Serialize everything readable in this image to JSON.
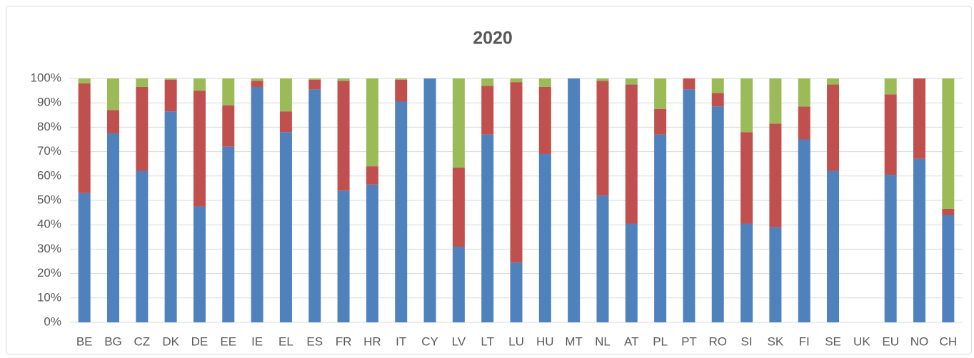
{
  "chart_data": {
    "type": "stacked_bar",
    "title": "2020",
    "categories": [
      "BE",
      "BG",
      "CZ",
      "DK",
      "DE",
      "EE",
      "IE",
      "EL",
      "ES",
      "FR",
      "HR",
      "IT",
      "CY",
      "LV",
      "LT",
      "LU",
      "HU",
      "MT",
      "NL",
      "AT",
      "PL",
      "PT",
      "RO",
      "SI",
      "SK",
      "FI",
      "SE",
      "UK",
      "EU",
      "NO",
      "CH"
    ],
    "series": [
      {
        "color": "#4f81bd",
        "values": [
          53,
          77.5,
          62,
          86.5,
          47.5,
          72,
          96.5,
          78,
          95.5,
          54,
          56.5,
          90.5,
          100,
          31,
          77,
          24.5,
          69,
          100,
          52,
          40.5,
          77,
          95.5,
          88.5,
          40.5,
          39,
          75,
          62,
          null,
          60.5,
          67,
          44
        ]
      },
      {
        "color": "#c0504d",
        "values": [
          45,
          9.5,
          34.5,
          13,
          47.5,
          17,
          2.5,
          8.5,
          4,
          45,
          7.5,
          9,
          0,
          32.5,
          20,
          74,
          27.5,
          0,
          47,
          57,
          10.5,
          4.5,
          5.5,
          37.5,
          42.5,
          13.5,
          35.5,
          null,
          33,
          33,
          2.5
        ]
      },
      {
        "color": "#9bbb59",
        "values": [
          2,
          13,
          3.5,
          0.5,
          5,
          11,
          1,
          13.5,
          0.5,
          1,
          36,
          0.5,
          0,
          36.5,
          3,
          1.5,
          3.5,
          0,
          1,
          2.5,
          12.5,
          0,
          6,
          22,
          18.5,
          11.5,
          2.5,
          null,
          6.5,
          0,
          53.5
        ]
      }
    ],
    "ylim": [
      0,
      100
    ],
    "yticks": [
      {
        "value": 0,
        "label": "0%"
      },
      {
        "value": 10,
        "label": "10%"
      },
      {
        "value": 20,
        "label": "20%"
      },
      {
        "value": 30,
        "label": "30%"
      },
      {
        "value": 40,
        "label": "40%"
      },
      {
        "value": 50,
        "label": "50%"
      },
      {
        "value": 60,
        "label": "60%"
      },
      {
        "value": 70,
        "label": "70%"
      },
      {
        "value": 80,
        "label": "80%"
      },
      {
        "value": 90,
        "label": "90%"
      },
      {
        "value": 100,
        "label": "100%"
      }
    ],
    "grid": true
  }
}
